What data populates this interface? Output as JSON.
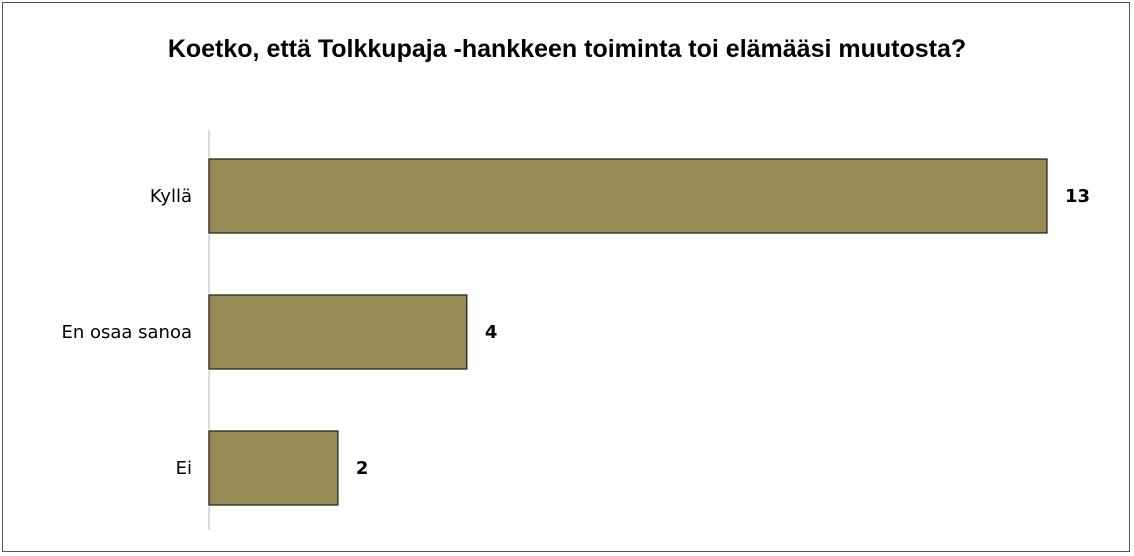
{
  "chart_data": {
    "type": "barh",
    "title": "Koetko, että Tolkkupaja -hankkeen toiminta toi elämääsi muutosta?",
    "categories": [
      "Kyllä",
      "En osaa sanoa",
      "Ei"
    ],
    "values": [
      13,
      4,
      2
    ],
    "color": "#968a55"
  }
}
